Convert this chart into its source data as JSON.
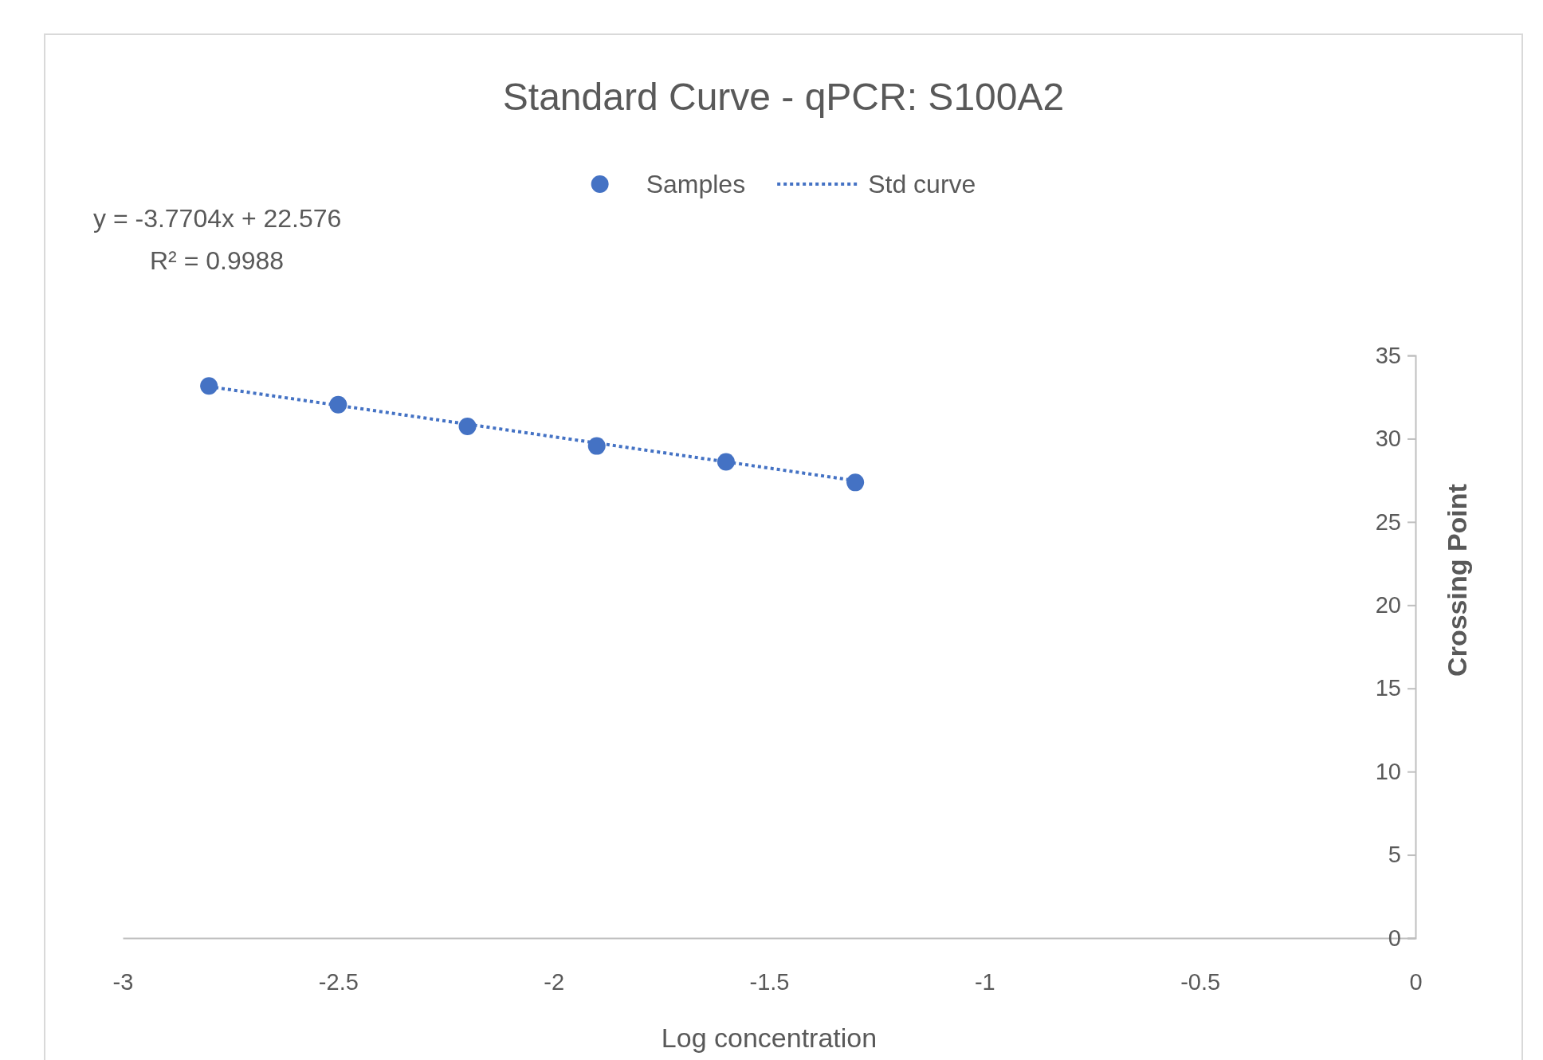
{
  "chart_data": {
    "type": "scatter",
    "title": "Standard Curve - qPCR: S100A2",
    "xlabel": "Log concentration",
    "ylabel": "Crossing Point",
    "annotations": [
      "y = -3.7704x + 22.576",
      "R² = 0.9988"
    ],
    "xlim": [
      -3,
      0
    ],
    "xticks": [
      -3,
      -2.5,
      -2,
      -1.5,
      -1,
      -0.5,
      0
    ],
    "ylim": [
      0,
      35
    ],
    "yticks": [
      0,
      5,
      10,
      15,
      20,
      25,
      30,
      35
    ],
    "grid": false,
    "legend": "top",
    "series": [
      {
        "name": "Samples",
        "marker": "circle",
        "color": "#4472c4",
        "x": [
          -2.8,
          -2.5,
          -2.2,
          -1.9,
          -1.6,
          -1.3
        ],
        "values": [
          33.17,
          32.04,
          30.74,
          29.56,
          28.61,
          27.37
        ]
      },
      {
        "name": "Std curve",
        "type": "line",
        "line_style": "dotted",
        "color": "#4472c4",
        "x": [
          -2.8,
          -1.3
        ],
        "values": [
          33.13,
          27.48
        ]
      }
    ]
  }
}
